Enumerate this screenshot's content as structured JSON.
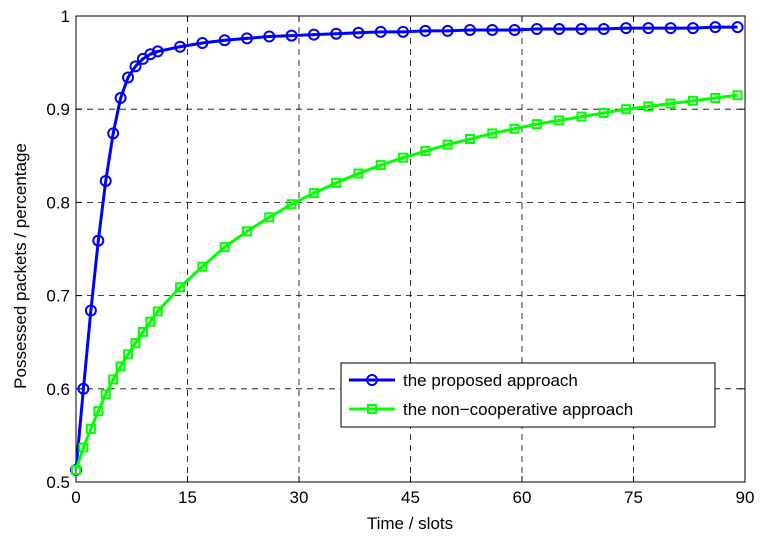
{
  "chart_data": {
    "type": "line",
    "title": "",
    "xlabel": "Time / slots",
    "ylabel": "Possessed packets / percentage",
    "xlim": [
      0,
      90
    ],
    "ylim": [
      0.5,
      1
    ],
    "xticks": [
      0,
      15,
      30,
      45,
      60,
      75,
      90
    ],
    "xtick_labels": [
      "0",
      "15",
      "30",
      "45",
      "60",
      "75",
      "90"
    ],
    "yticks": [
      0.5,
      0.6,
      0.7,
      0.8,
      0.9,
      1
    ],
    "ytick_labels": [
      "0.5",
      "0.6",
      "0.7",
      "0.8",
      "0.9",
      "1"
    ],
    "grid": true,
    "legend_position": "lower-right",
    "series": [
      {
        "name": "the proposed approach",
        "color": "#0000ff",
        "marker": "circle",
        "x": [
          0,
          1,
          2,
          3,
          4,
          5,
          6,
          7,
          8,
          9,
          10,
          11,
          14,
          17,
          20,
          23,
          26,
          29,
          32,
          35,
          38,
          41,
          44,
          47,
          50,
          53,
          56,
          59,
          62,
          65,
          68,
          71,
          74,
          77,
          80,
          83,
          86,
          89
        ],
        "y": [
          0.513,
          0.6,
          0.684,
          0.759,
          0.823,
          0.874,
          0.912,
          0.934,
          0.946,
          0.954,
          0.959,
          0.962,
          0.967,
          0.971,
          0.974,
          0.976,
          0.978,
          0.979,
          0.98,
          0.981,
          0.982,
          0.983,
          0.983,
          0.984,
          0.984,
          0.985,
          0.985,
          0.985,
          0.986,
          0.986,
          0.986,
          0.986,
          0.987,
          0.987,
          0.987,
          0.987,
          0.988,
          0.988
        ]
      },
      {
        "name": "the non−cooperative approach",
        "color": "#00ff00",
        "marker": "square",
        "x": [
          0,
          1,
          2,
          3,
          4,
          5,
          6,
          7,
          8,
          9,
          10,
          11,
          14,
          17,
          20,
          23,
          26,
          29,
          32,
          35,
          38,
          41,
          44,
          47,
          50,
          53,
          56,
          59,
          62,
          65,
          68,
          71,
          74,
          77,
          80,
          83,
          86,
          89
        ],
        "y": [
          0.513,
          0.537,
          0.557,
          0.576,
          0.594,
          0.61,
          0.624,
          0.637,
          0.649,
          0.661,
          0.672,
          0.683,
          0.709,
          0.731,
          0.752,
          0.769,
          0.784,
          0.798,
          0.81,
          0.821,
          0.831,
          0.84,
          0.848,
          0.855,
          0.862,
          0.868,
          0.874,
          0.879,
          0.884,
          0.888,
          0.892,
          0.896,
          0.9,
          0.903,
          0.906,
          0.909,
          0.912,
          0.915
        ]
      }
    ]
  }
}
